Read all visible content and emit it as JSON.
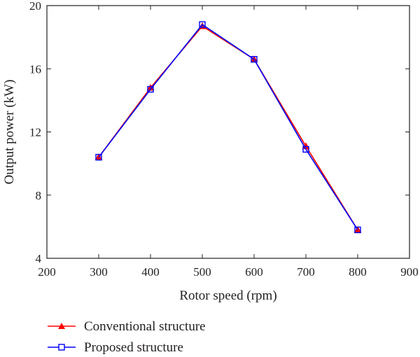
{
  "chart_data": {
    "type": "line",
    "xlabel": "Rotor speed (rpm)",
    "ylabel": "Output power (kW)",
    "xlim": [
      200,
      900
    ],
    "ylim": [
      4,
      20
    ],
    "xticks": [
      200,
      300,
      400,
      500,
      600,
      700,
      800,
      900
    ],
    "yticks": [
      4,
      8,
      12,
      16,
      20
    ],
    "x": [
      300,
      400,
      500,
      600,
      700,
      800
    ],
    "grid": false,
    "legend_position": "bottom",
    "series": [
      {
        "name": "Conventional structure",
        "values": [
          10.4,
          14.8,
          18.7,
          16.6,
          11.1,
          5.8
        ],
        "color": "#ff0000",
        "marker": "filled-triangle"
      },
      {
        "name": "Proposed structure",
        "values": [
          10.4,
          14.7,
          18.8,
          16.6,
          10.9,
          5.8
        ],
        "color": "#0000ff",
        "marker": "open-square"
      }
    ]
  }
}
